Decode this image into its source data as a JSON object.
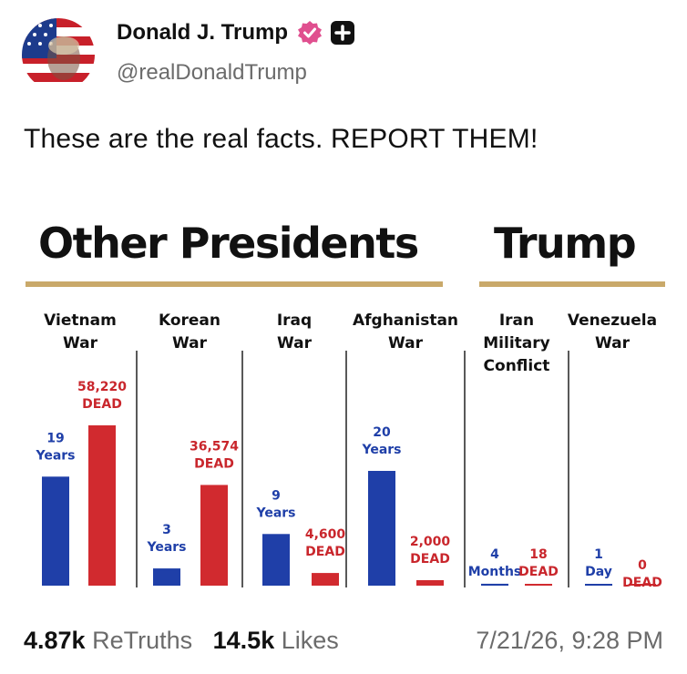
{
  "post": {
    "display_name": "Donald J. Trump",
    "handle": "@realDonaldTrump",
    "text": "These are the real facts. REPORT THEM!",
    "retruths_count": "4.87k",
    "retruths_label": "ReTruths",
    "likes_count": "14.5k",
    "likes_label": "Likes",
    "timestamp": "7/21/26, 9:28 PM"
  },
  "colors": {
    "blue": "#1f3fa8",
    "red": "#d12a2f",
    "gold": "#c9a96a",
    "label_blue": "#1f3fa8",
    "label_red": "#c9262c"
  },
  "chart_data": {
    "type": "bar",
    "group_headings": [
      "Other Presidents",
      "Trump"
    ],
    "categories": [
      {
        "label_lines": [
          "Vietnam",
          "War"
        ],
        "years_label": [
          "19",
          "Years"
        ],
        "dead_label": [
          "58,220",
          "DEAD"
        ],
        "duration_years": 19,
        "dead": 58220
      },
      {
        "label_lines": [
          "Korean",
          "War"
        ],
        "years_label": [
          "3",
          "Years"
        ],
        "dead_label": [
          "36,574",
          "DEAD"
        ],
        "duration_years": 3,
        "dead": 36574
      },
      {
        "label_lines": [
          "Iraq",
          "War"
        ],
        "years_label": [
          "9",
          "Years"
        ],
        "dead_label": [
          "4,600",
          "DEAD"
        ],
        "duration_years": 9,
        "dead": 4600
      },
      {
        "label_lines": [
          "Afghanistan",
          "War"
        ],
        "years_label": [
          "20",
          "Years"
        ],
        "dead_label": [
          "2,000",
          "DEAD"
        ],
        "duration_years": 20,
        "dead": 2000
      },
      {
        "label_lines": [
          "Iran",
          "Military",
          "Conflict"
        ],
        "years_label": [
          "4",
          "Months"
        ],
        "dead_label": [
          "18",
          "DEAD"
        ],
        "duration_years": 0.33,
        "dead": 18
      },
      {
        "label_lines": [
          "Venezuela",
          "War"
        ],
        "years_label": [
          "1",
          "Day"
        ],
        "dead_label": [
          "0",
          "DEAD"
        ],
        "duration_years": 0.003,
        "dead": 0
      }
    ]
  }
}
